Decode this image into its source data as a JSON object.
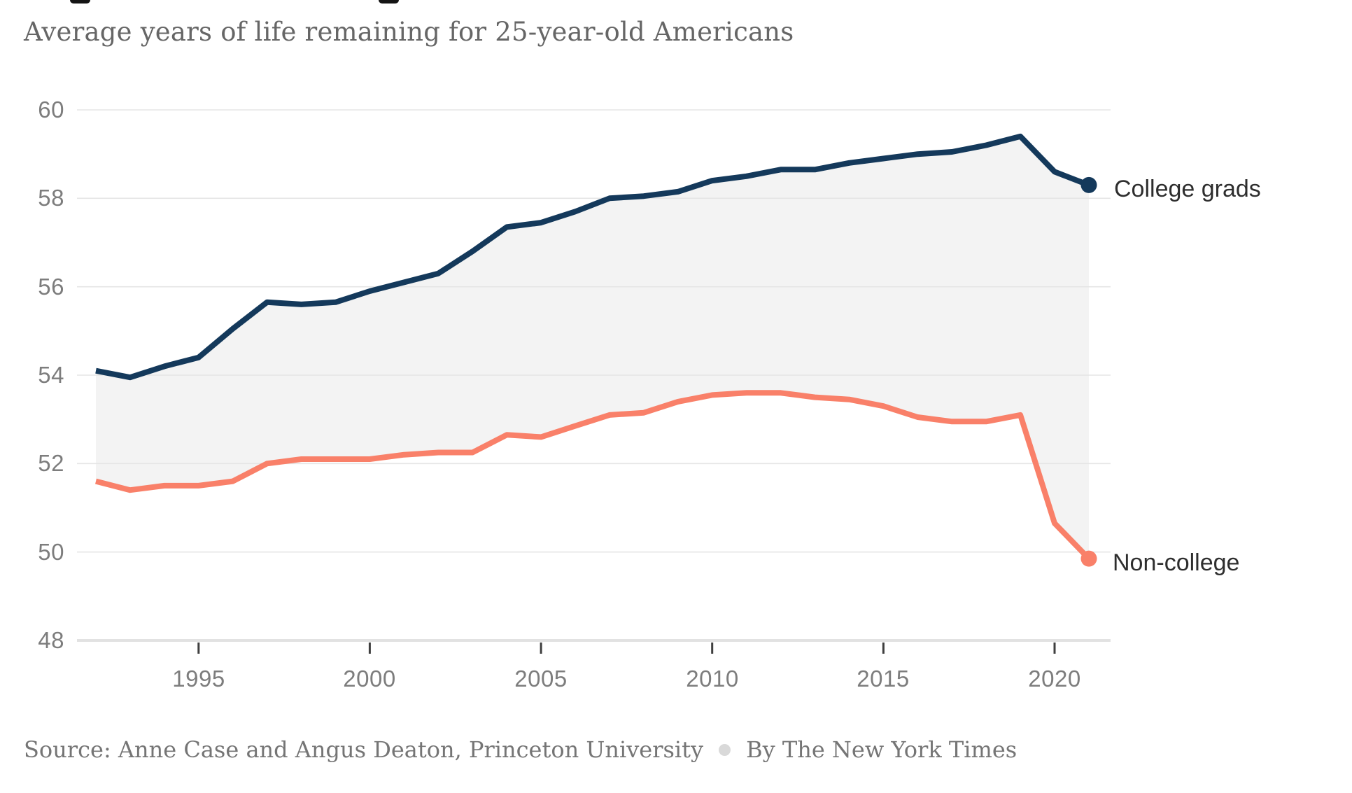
{
  "header": {
    "subtitle": "Average years of life remaining for 25-year-old Americans"
  },
  "footer": {
    "source": "Source: Anne Case and Angus Deaton, Princeton University",
    "byline": "By The New York Times"
  },
  "colors": {
    "college_line": "#14395b",
    "noncollege_line": "#f98069",
    "band_fill": "#f3f3f3",
    "gridline": "#e5e5e5",
    "axis_line": "#e2e2e2",
    "tick_mark": "#3f3f3f",
    "tick_label": "#7d7d7d",
    "series_label": "#2e2e2e",
    "subtitle_text": "#666666",
    "source_text": "#757575",
    "separator_dot": "#d9d9d9"
  },
  "chart_data": {
    "type": "line",
    "title": "Average years of life remaining for 25-year-old Americans",
    "xlabel": "",
    "ylabel": "",
    "x": [
      1992,
      1993,
      1994,
      1995,
      1996,
      1997,
      1998,
      1999,
      2000,
      2001,
      2002,
      2003,
      2004,
      2005,
      2006,
      2007,
      2008,
      2009,
      2010,
      2011,
      2012,
      2013,
      2014,
      2015,
      2016,
      2017,
      2018,
      2019,
      2020,
      2021
    ],
    "series": [
      {
        "name": "College grads",
        "color": "#14395b",
        "values": [
          54.1,
          53.95,
          54.2,
          54.4,
          55.05,
          55.65,
          55.6,
          55.65,
          55.9,
          56.1,
          56.3,
          56.8,
          57.35,
          57.45,
          57.7,
          58.0,
          58.05,
          58.15,
          58.4,
          58.5,
          58.65,
          58.65,
          58.8,
          58.9,
          59.0,
          59.05,
          59.2,
          59.4,
          58.6,
          58.3
        ]
      },
      {
        "name": "Non-college",
        "color": "#f98069",
        "values": [
          51.6,
          51.4,
          51.5,
          51.5,
          51.6,
          52.0,
          52.1,
          52.1,
          52.1,
          52.2,
          52.25,
          52.25,
          52.65,
          52.6,
          52.85,
          53.1,
          53.15,
          53.4,
          53.55,
          53.6,
          53.6,
          53.5,
          53.45,
          53.3,
          53.05,
          52.95,
          52.95,
          53.1,
          50.65,
          49.85
        ]
      }
    ],
    "ylim": [
      48,
      60
    ],
    "xlim": [
      1992,
      2021
    ],
    "yticks": [
      60,
      58,
      56,
      54,
      52,
      50,
      48
    ],
    "xticks": [
      1995,
      2000,
      2005,
      2010,
      2015,
      2020
    ],
    "grid": true,
    "legend_position": "line-end-labels",
    "band_between_series": true,
    "end_point_markers": true
  }
}
